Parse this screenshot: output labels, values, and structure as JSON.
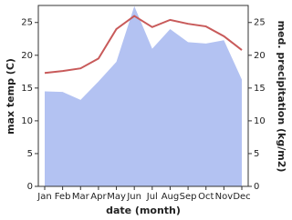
{
  "chart_data": {
    "type": "line",
    "x_label": "date (month)",
    "y_label": "max temp (C)",
    "y2_label": "med. precipitation (kg/m2)",
    "categories": [
      "Jan",
      "Feb",
      "Mar",
      "Apr",
      "May",
      "Jun",
      "Jul",
      "Aug",
      "Sep",
      "Oct",
      "Nov",
      "Dec"
    ],
    "series": [
      {
        "color": "#c85a5a",
        "values": [
          17.3,
          17.6,
          18.0,
          19.5,
          24.0,
          26.0,
          24.3,
          25.4,
          24.8,
          24.4,
          22.9,
          20.8
        ]
      },
      {
        "color": "#b3c2f2",
        "area": true,
        "axis": "y2",
        "values": [
          14.5,
          14.4,
          13.2,
          16.0,
          19.0,
          27.5,
          21.0,
          24.0,
          22.0,
          21.8,
          22.3,
          16.3
        ]
      }
    ],
    "ylim": [
      0,
      27.6
    ],
    "yticks": [
      0,
      5,
      10,
      15,
      20,
      25
    ],
    "y2lim": [
      0,
      27.6
    ],
    "y2ticks": [
      0,
      5,
      10,
      15,
      20,
      25
    ]
  }
}
